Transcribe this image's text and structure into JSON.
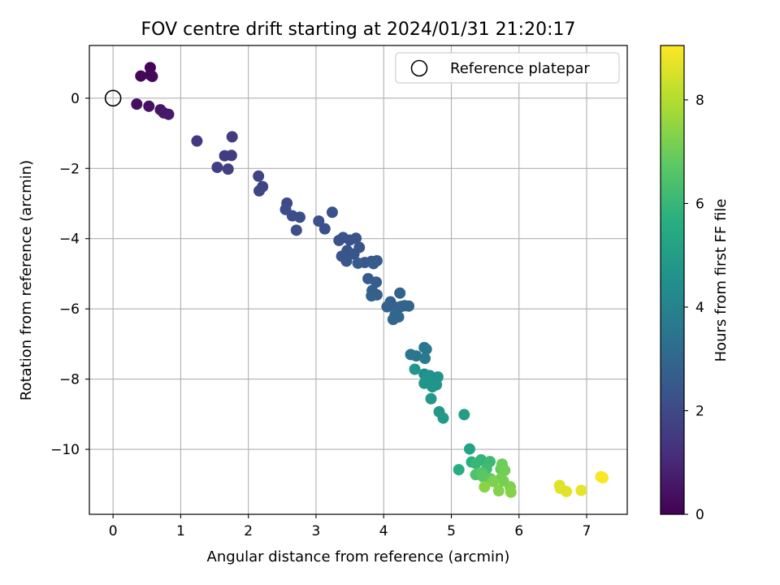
{
  "chart_data": {
    "type": "scatter",
    "title": "FOV centre drift starting at 2024/01/31 21:20:17",
    "xlabel": "Angular distance from reference (arcmin)",
    "ylabel": "Rotation from reference (arcmin)",
    "xlim": [
      -0.35,
      7.6
    ],
    "ylim": [
      -11.85,
      1.5
    ],
    "xticks": [
      "0",
      "1",
      "2",
      "3",
      "4",
      "5",
      "6",
      "7"
    ],
    "yticks": [
      "0",
      "−2",
      "−4",
      "−6",
      "−8",
      "−10"
    ],
    "grid": true,
    "legend": {
      "position": "top-right",
      "entries": [
        "Reference platepar"
      ]
    },
    "reference_point": {
      "x": 0,
      "y": 0
    },
    "colorbar": {
      "label": "Hours from first FF file",
      "colormap": "viridis",
      "range": [
        0,
        9.05
      ],
      "ticks": [
        "0",
        "2",
        "4",
        "6",
        "8"
      ]
    },
    "series": [
      {
        "x": [
          0.55,
          0.55,
          0.41,
          0.58,
          0.35,
          0.53,
          0.7,
          0.75,
          0.82,
          1.24,
          1.76,
          1.65,
          1.75,
          1.54,
          1.7,
          2.15,
          2.21,
          2.16,
          2.57,
          2.55,
          2.65,
          2.76,
          2.71,
          3.04,
          3.24,
          3.13,
          3.34,
          3.4,
          3.59,
          3.5,
          3.46,
          3.56,
          3.38,
          3.45,
          3.64,
          3.72,
          3.82,
          3.9,
          3.77,
          3.62,
          3.85,
          3.89,
          3.83,
          3.9,
          3.82,
          4.1,
          4.24,
          4.2,
          4.05,
          4.26,
          4.31,
          4.37,
          4.17,
          4.14,
          4.22,
          4.4,
          4.48,
          4.6,
          4.63,
          4.61,
          4.6,
          4.68,
          4.7,
          4.8,
          4.75,
          4.78,
          4.72,
          4.6,
          4.63,
          4.46,
          4.7,
          4.82,
          4.88,
          5.19,
          5.27,
          5.11,
          5.3,
          5.44,
          5.36,
          5.57,
          5.52,
          5.53,
          5.41,
          5.36,
          5.45,
          5.47,
          5.58,
          5.73,
          5.75,
          5.79,
          5.72,
          5.77,
          5.87,
          5.62,
          5.7,
          5.88,
          5.49,
          6.6,
          6.61,
          6.7,
          6.92,
          7.21,
          7.24
        ],
        "y": [
          0.87,
          0.66,
          0.63,
          0.62,
          -0.17,
          -0.23,
          -0.33,
          -0.42,
          -0.46,
          -1.22,
          -1.1,
          -1.64,
          -1.63,
          -1.97,
          -2.02,
          -2.22,
          -2.52,
          -2.64,
          -2.99,
          -3.17,
          -3.35,
          -3.39,
          -3.76,
          -3.5,
          -3.25,
          -3.72,
          -4.05,
          -3.97,
          -3.99,
          -4.04,
          -4.34,
          -4.44,
          -4.5,
          -4.64,
          -4.25,
          -4.68,
          -4.65,
          -4.63,
          -5.14,
          -4.7,
          -4.71,
          -5.24,
          -5.48,
          -5.6,
          -5.63,
          -5.8,
          -5.55,
          -5.96,
          -5.94,
          -5.93,
          -5.91,
          -5.92,
          -6.16,
          -6.3,
          -6.23,
          -7.3,
          -7.34,
          -7.1,
          -7.15,
          -7.41,
          -7.86,
          -7.9,
          -8.04,
          -7.94,
          -8.06,
          -8.16,
          -8.22,
          -8.12,
          -8.03,
          -7.72,
          -8.56,
          -8.93,
          -9.11,
          -9.01,
          -9.99,
          -10.58,
          -10.36,
          -10.3,
          -10.4,
          -10.35,
          -10.55,
          -10.81,
          -10.68,
          -10.72,
          -10.67,
          -10.78,
          -10.84,
          -10.56,
          -10.42,
          -10.6,
          -10.85,
          -10.9,
          -11.07,
          -10.92,
          -11.18,
          -11.22,
          -11.07,
          -11.03,
          -11.11,
          -11.2,
          -11.17,
          -10.78,
          -10.81
        ],
        "c": [
          0.1,
          0.12,
          0.15,
          0.2,
          0.35,
          0.45,
          0.52,
          0.58,
          0.62,
          1.4,
          1.55,
          1.6,
          1.62,
          1.68,
          1.72,
          1.8,
          1.82,
          1.85,
          2.05,
          2.1,
          2.12,
          2.15,
          2.18,
          2.2,
          2.22,
          2.24,
          2.26,
          2.28,
          2.3,
          2.32,
          2.34,
          2.36,
          2.38,
          2.4,
          2.42,
          2.44,
          2.5,
          2.55,
          2.6,
          2.62,
          2.64,
          2.66,
          2.7,
          2.72,
          2.74,
          2.8,
          2.85,
          2.86,
          2.88,
          2.9,
          2.92,
          2.94,
          2.96,
          2.98,
          3.0,
          3.5,
          3.55,
          3.6,
          3.62,
          3.64,
          4.5,
          4.55,
          4.58,
          4.6,
          4.62,
          4.64,
          4.66,
          4.68,
          4.7,
          4.72,
          4.74,
          4.8,
          4.85,
          5.0,
          5.2,
          5.6,
          5.7,
          5.9,
          6.0,
          6.1,
          6.2,
          6.3,
          6.4,
          6.5,
          6.6,
          6.7,
          6.8,
          6.9,
          7.0,
          7.05,
          7.1,
          7.15,
          7.2,
          7.25,
          7.3,
          7.35,
          7.4,
          8.6,
          8.62,
          8.65,
          8.7,
          8.95,
          9.0
        ]
      }
    ]
  }
}
